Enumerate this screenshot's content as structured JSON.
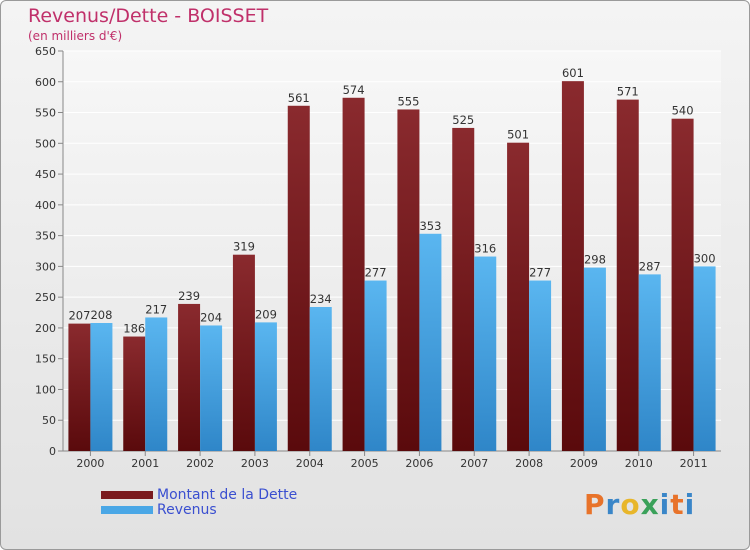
{
  "title": "Revenus/Dette - BOISSET",
  "subtitle": "(en milliers d'€)",
  "logo": [
    "P",
    "r",
    "o",
    "x",
    "i",
    "t",
    "i"
  ],
  "colors": {
    "debt": "#7a1a1e",
    "revenue": "#4aa7e6",
    "title": "#c0306a",
    "legend_text": "#3a4fd0",
    "logo": [
      "#e8732a",
      "#3a86c8",
      "#e8b62a",
      "#3aa15a",
      "#3a86c8",
      "#e8732a",
      "#3a86c8"
    ]
  },
  "chart_data": {
    "type": "bar",
    "title": "Revenus/Dette - BOISSET",
    "ylabel": "(en milliers d'€)",
    "xlabel": "",
    "categories": [
      "2000",
      "2001",
      "2002",
      "2003",
      "2004",
      "2005",
      "2006",
      "2007",
      "2008",
      "2009",
      "2010",
      "2011"
    ],
    "ylim": [
      0,
      650
    ],
    "yticks": [
      0,
      50,
      100,
      150,
      200,
      250,
      300,
      350,
      400,
      450,
      500,
      550,
      600,
      650
    ],
    "grid": true,
    "legend_position": "bottom-left",
    "series": [
      {
        "name": "Montant de la Dette",
        "values": [
          207,
          186,
          239,
          319,
          561,
          574,
          555,
          525,
          501,
          601,
          571,
          540
        ]
      },
      {
        "name": "Revenus",
        "values": [
          208,
          217,
          204,
          209,
          234,
          277,
          353,
          316,
          277,
          298,
          287,
          300
        ]
      }
    ]
  }
}
